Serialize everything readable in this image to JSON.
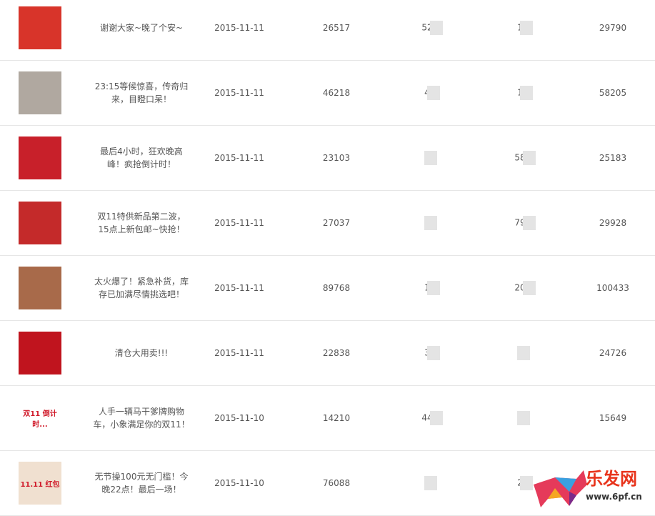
{
  "rows": [
    {
      "title": "谢谢大家~晚了个安~",
      "date": "2015-11-11",
      "col1": "26517",
      "col2": "52",
      "col3": "1",
      "col4": "29790",
      "thumb_color": "#d8342a"
    },
    {
      "title": "23:15等候惊喜，传奇归来，目瞪口呆！",
      "date": "2015-11-11",
      "col1": "46218",
      "col2": "4",
      "col3": "1",
      "col4": "58205",
      "thumb_color": "#b0a8a0"
    },
    {
      "title": "最后4小时，狂欢晚高峰！疯抢倒计时！",
      "date": "2015-11-11",
      "col1": "23103",
      "col2": "",
      "col3": "58",
      "col4": "25183",
      "thumb_color": "#c8202a"
    },
    {
      "title": "双11特供新品第二波，15点上新包邮~快抢！",
      "date": "2015-11-11",
      "col1": "27037",
      "col2": "",
      "col3": "79",
      "col4": "29928",
      "thumb_color": "#c42a2a"
    },
    {
      "title": "太火爆了！紧急补货，库存已加满尽情挑选吧！",
      "date": "2015-11-11",
      "col1": "89768",
      "col2": "1",
      "col3": "20",
      "col4": "100433",
      "thumb_color": "#a86a4a"
    },
    {
      "title": "清仓大用卖!!!",
      "date": "2015-11-11",
      "col1": "22838",
      "col2": "3",
      "col3": "",
      "col4": "24726",
      "thumb_color": "#c0141e"
    },
    {
      "title": "人手一辆马干爹牌购物车，小象满足你的双11！",
      "date": "2015-11-10",
      "col1": "14210",
      "col2": "44",
      "col3": "",
      "col4": "15649",
      "thumb_color": "#ffffff",
      "thumb_text": "双11 倒计时..."
    },
    {
      "title": "无节操100元无门槛！今晚22点！最后一场！",
      "date": "2015-11-10",
      "col1": "76088",
      "col2": "",
      "col3": "2",
      "col4": "",
      "thumb_color": "#f0e0d0",
      "thumb_text": "11.11 红包"
    }
  ],
  "watermark": {
    "name": "乐发网",
    "url": "www.6pf.cn"
  }
}
